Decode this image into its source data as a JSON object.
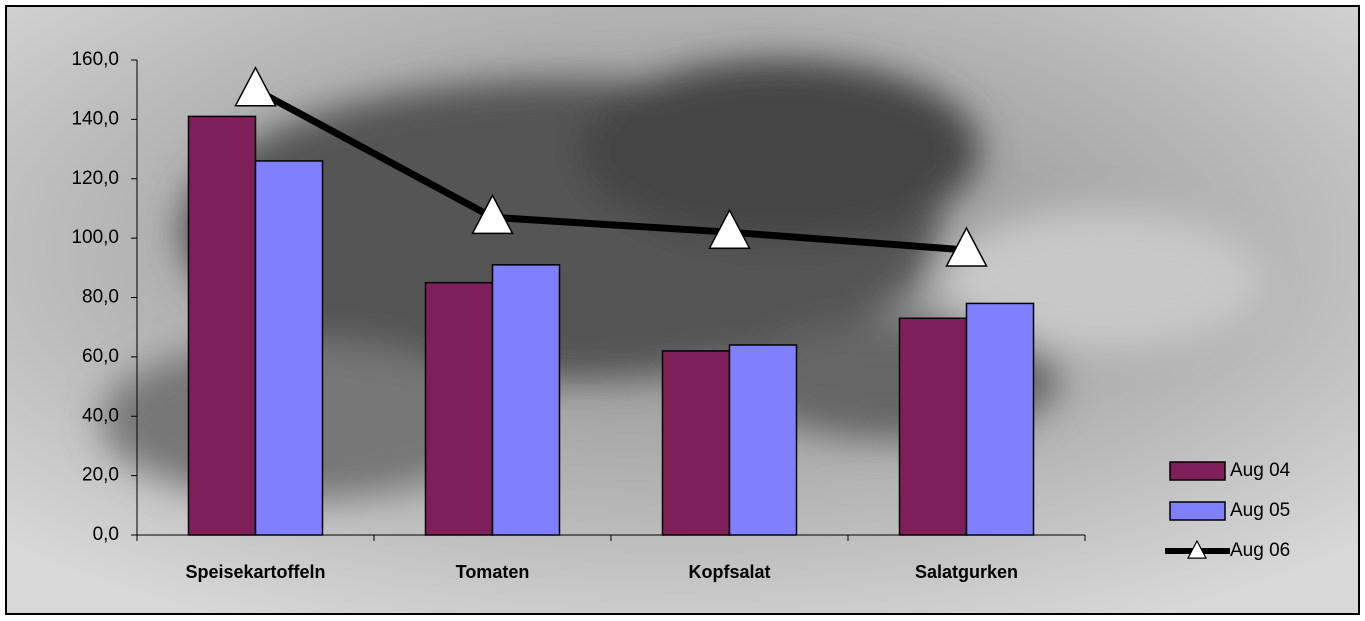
{
  "chart_data": {
    "type": "bar-line",
    "categories": [
      "Speisekartoffeln",
      "Tomaten",
      "Kopfsalat",
      "Salatgurken"
    ],
    "series": [
      {
        "name": "Aug 04",
        "type": "bar",
        "color": "#7f1f5a",
        "values": [
          141,
          85,
          62,
          73
        ]
      },
      {
        "name": "Aug 05",
        "type": "bar",
        "color": "#8080ff",
        "values": [
          126,
          91,
          64,
          78
        ]
      },
      {
        "name": "Aug 06",
        "type": "line",
        "color": "#000000",
        "values": [
          150,
          107,
          102,
          96
        ]
      }
    ],
    "ylim": [
      0,
      160
    ],
    "yticks": [
      {
        "value": 0,
        "label": "0,0"
      },
      {
        "value": 20,
        "label": "20,0"
      },
      {
        "value": 40,
        "label": "40,0"
      },
      {
        "value": 60,
        "label": "60,0"
      },
      {
        "value": 80,
        "label": "80,0"
      },
      {
        "value": 100,
        "label": "100,0"
      },
      {
        "value": 120,
        "label": "120,0"
      },
      {
        "value": 140,
        "label": "140,0"
      },
      {
        "value": 160,
        "label": "160,0"
      }
    ],
    "legend": "right"
  }
}
